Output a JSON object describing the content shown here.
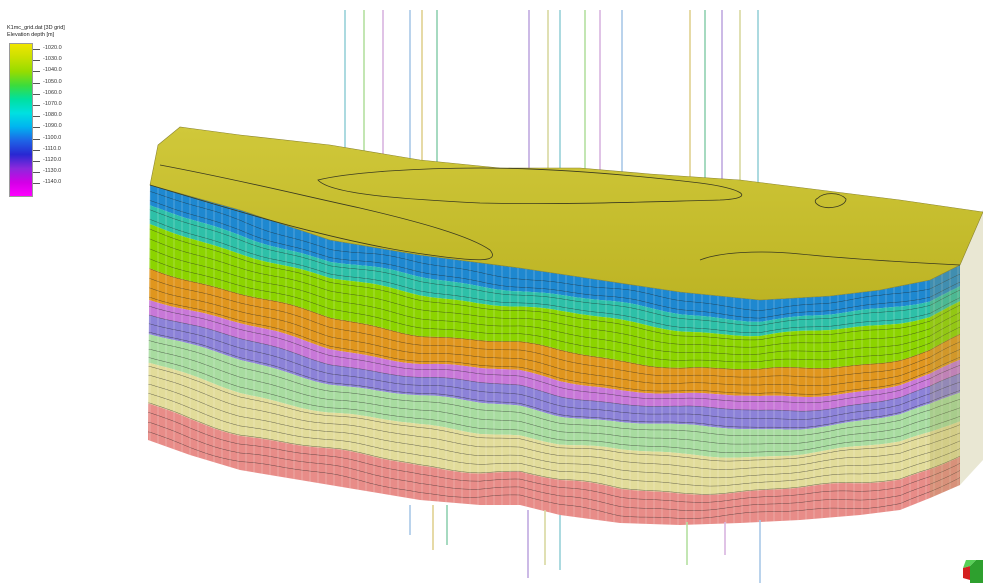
{
  "legend": {
    "title_line1": "K1mc_grid.dat [3D grid]",
    "title_line2": "Elevation depth [m]",
    "ticks": [
      "-1020.0",
      "-1030.0",
      "-1040.0",
      "-1050.0",
      "-1060.0",
      "-1070.0",
      "-1080.0",
      "-1090.0",
      "-1100.0",
      "-1110.0",
      "-1120.0",
      "-1130.0",
      "-1140.0"
    ],
    "gradient_colors": [
      "#f0e600",
      "#c8e000",
      "#96dc00",
      "#3cdc3c",
      "#00e0a0",
      "#00e0e0",
      "#00b4f0",
      "#1e64e6",
      "#2828d2",
      "#8c28dc",
      "#d200e6",
      "#ff00ff"
    ]
  },
  "layers": [
    {
      "name": "top-surface",
      "color": "#c8c028"
    },
    {
      "name": "layer-blue",
      "color": "#1e88d0"
    },
    {
      "name": "layer-teal",
      "color": "#2ec0a8"
    },
    {
      "name": "layer-green",
      "color": "#8cd400"
    },
    {
      "name": "layer-orange",
      "color": "#e0961e"
    },
    {
      "name": "layer-violet",
      "color": "#c878d8"
    },
    {
      "name": "layer-lavender",
      "color": "#8c82d8"
    },
    {
      "name": "layer-light-green",
      "color": "#a8dca0"
    },
    {
      "name": "layer-cream",
      "color": "#e2dc9a"
    },
    {
      "name": "layer-salmon",
      "color": "#e88c88"
    }
  ],
  "well_colors": [
    "#98d0d8",
    "#b4e0a0",
    "#d8b4e0",
    "#a8c8e8",
    "#e0d090",
    "#90d0b0",
    "#c0a8e0",
    "#d8d8a0"
  ]
}
